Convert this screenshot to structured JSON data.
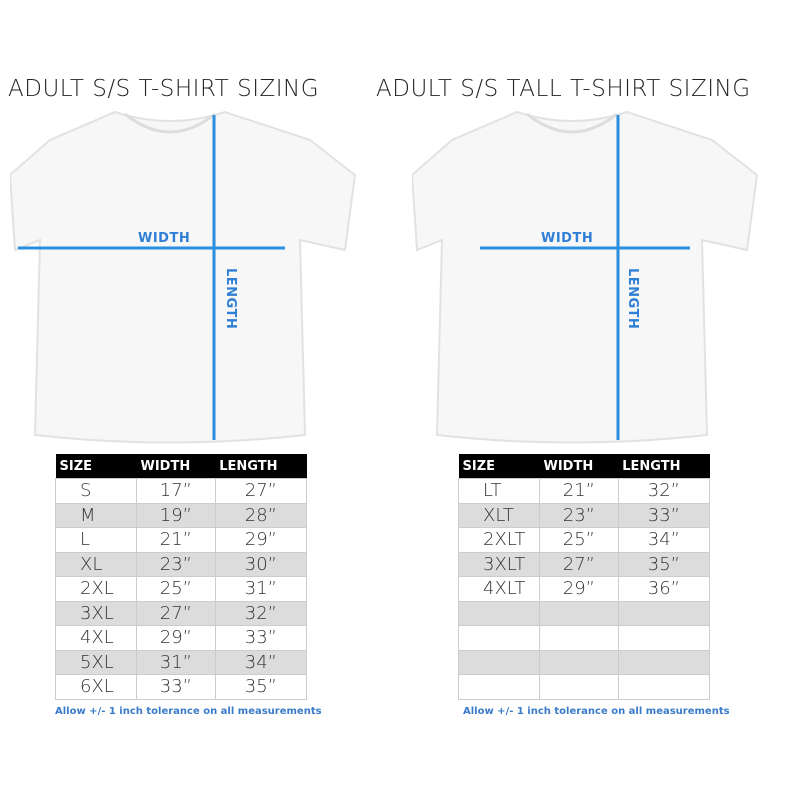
{
  "left": {
    "title": "ADULT S/S T-SHIRT SIZING",
    "width_label": "WIDTH",
    "length_label": "LENGTH",
    "headers": [
      "SIZE",
      "WIDTH",
      "LENGTH"
    ],
    "rows": [
      [
        "S",
        "17”",
        "27”"
      ],
      [
        "M",
        "19”",
        "28”"
      ],
      [
        "L",
        "21”",
        "29”"
      ],
      [
        "XL",
        "23”",
        "30”"
      ],
      [
        "2XL",
        "25”",
        "31”"
      ],
      [
        "3XL",
        "27”",
        "32”"
      ],
      [
        "4XL",
        "29”",
        "33”"
      ],
      [
        "5XL",
        "31”",
        "34”"
      ],
      [
        "6XL",
        "33”",
        "35”"
      ]
    ],
    "note": "Allow +/- 1 inch tolerance on all measurements"
  },
  "right": {
    "title": "ADULT S/S TALL T-SHIRT SIZING",
    "width_label": "WIDTH",
    "length_label": "LENGTH",
    "headers": [
      "SIZE",
      "WIDTH",
      "LENGTH"
    ],
    "rows": [
      [
        "LT",
        "21”",
        "32”"
      ],
      [
        "XLT",
        "23”",
        "33”"
      ],
      [
        "2XLT",
        "25”",
        "34”"
      ],
      [
        "3XLT",
        "27”",
        "35”"
      ],
      [
        "4XLT",
        "29”",
        "36”"
      ],
      [
        "",
        "",
        ""
      ],
      [
        "",
        "",
        ""
      ],
      [
        "",
        "",
        ""
      ],
      [
        "",
        "",
        ""
      ]
    ],
    "note": "Allow +/- 1 inch tolerance on all measurements"
  },
  "colors": {
    "measure_line": "#2a8fe0",
    "header_bg": "#000000",
    "alt_row": "#dcdcdc",
    "note": "#3a7bc8"
  }
}
